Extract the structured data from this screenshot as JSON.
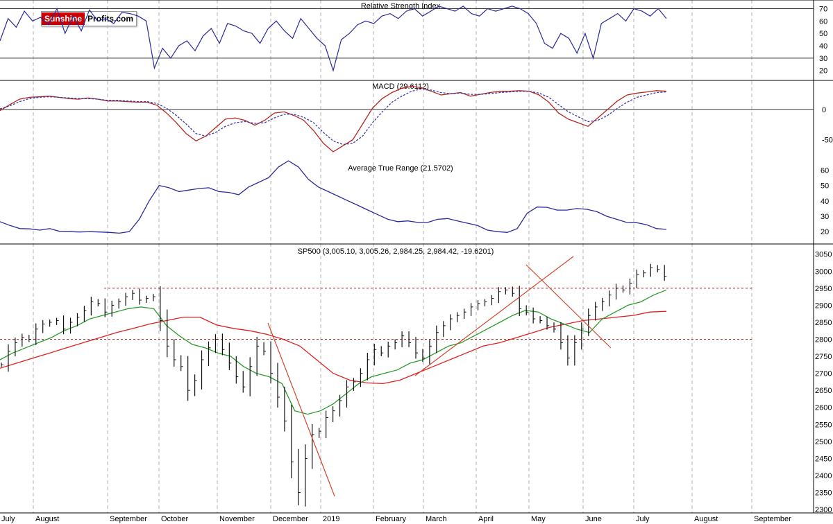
{
  "logo": {
    "part1": "Sunshine",
    "part2": "Profits.com"
  },
  "chart_data": [
    {
      "type": "line",
      "title": "Relative Strength Index",
      "y_ticks": [
        70,
        60,
        50,
        40,
        30,
        20
      ],
      "ylim": [
        12,
        77
      ],
      "reference_lines": [
        70,
        30
      ],
      "series": [
        {
          "values": [
            44,
            62,
            55,
            68,
            60,
            63,
            57,
            70,
            50,
            64,
            52,
            69,
            60,
            62,
            58,
            67,
            66,
            64,
            60,
            22,
            38,
            30,
            40,
            44,
            36,
            48,
            54,
            42,
            58,
            56,
            52,
            50,
            42,
            54,
            60,
            52,
            46,
            62,
            54,
            46,
            40,
            20,
            45,
            50,
            57,
            60,
            58,
            64,
            66,
            62,
            68,
            70,
            64,
            68,
            72,
            70,
            68,
            72,
            66,
            64,
            70,
            68,
            70,
            72,
            70,
            66,
            58,
            42,
            38,
            50,
            46,
            34,
            50,
            30,
            58,
            62,
            66,
            60,
            70,
            68,
            64,
            70,
            62
          ]
        }
      ]
    },
    {
      "type": "line",
      "title": "MACD (29.6112)",
      "y_ticks": [
        0,
        -50
      ],
      "ylim": [
        -78,
        48
      ],
      "series": [
        {
          "color": "#b3261e",
          "values": [
            -2,
            8,
            17,
            20,
            21,
            22,
            20,
            18,
            17,
            19,
            17,
            14,
            14,
            13,
            12,
            12,
            7,
            -6,
            -22,
            -40,
            -52,
            -44,
            -30,
            -16,
            -14,
            -18,
            -26,
            -18,
            -6,
            -4,
            -10,
            -18,
            -35,
            -56,
            -70,
            -60,
            -50,
            -24,
            2,
            18,
            28,
            35,
            38,
            36,
            30,
            24,
            26,
            28,
            22,
            25,
            28,
            30,
            30,
            31,
            30,
            24,
            12,
            -6,
            -16,
            -22,
            -28,
            -14,
            0,
            14,
            24,
            27,
            29,
            31,
            30
          ]
        },
        {
          "color": "#3a3aa8",
          "values": [
            1,
            6,
            13,
            18,
            20,
            21,
            20,
            19,
            18,
            18,
            17,
            15,
            15,
            14,
            13,
            13,
            10,
            2,
            -10,
            -24,
            -40,
            -44,
            -38,
            -28,
            -22,
            -20,
            -23,
            -22,
            -14,
            -8,
            -8,
            -13,
            -22,
            -38,
            -52,
            -58,
            -56,
            -44,
            -22,
            -4,
            12,
            22,
            30,
            34,
            32,
            28,
            26,
            27,
            25,
            25,
            26,
            28,
            29,
            30,
            30,
            27,
            20,
            8,
            -4,
            -12,
            -20,
            -18,
            -10,
            2,
            12,
            20,
            24,
            28,
            29
          ]
        }
      ]
    },
    {
      "type": "line",
      "title": "Average True Range (21.5702)",
      "y_ticks": [
        60,
        50,
        40,
        30,
        20
      ],
      "ylim": [
        12,
        66
      ],
      "series": [
        {
          "values": [
            26.5,
            24,
            22,
            21.8,
            21,
            22,
            20.2,
            20,
            19.8,
            20,
            19.8,
            19.5,
            19,
            20,
            28,
            40,
            50,
            48.5,
            46,
            47,
            48,
            48.5,
            46,
            45.5,
            44,
            49,
            52,
            55,
            62,
            66,
            62,
            54,
            49,
            46,
            43,
            40,
            37,
            34,
            31,
            28,
            26.5,
            27,
            26,
            26,
            28,
            28.5,
            27,
            25.5,
            24,
            21,
            20,
            19.5,
            22,
            32,
            36,
            35.8,
            34,
            34,
            35,
            34.5,
            33,
            30,
            28,
            26,
            25.8,
            24.5,
            22,
            21.5
          ]
        }
      ]
    },
    {
      "type": "bar",
      "title": "SP500 (3,005.10, 3,005.26, 2,984.25, 2,984.42, -19.6201)",
      "y_ticks": [
        3050,
        3000,
        2950,
        2900,
        2850,
        2800,
        2750,
        2700,
        2650,
        2600,
        2550,
        2500,
        2450,
        2400,
        2350,
        2300
      ],
      "ylim": [
        2290,
        3080
      ],
      "x_labels": [
        "July",
        "August",
        "September",
        "October",
        "November",
        "December",
        "2019",
        "February",
        "March",
        "April",
        "May",
        "June",
        "July",
        "August",
        "September"
      ],
      "price_closes": [
        2725,
        2765,
        2790,
        2805,
        2800,
        2830,
        2845,
        2850,
        2855,
        2830,
        2850,
        2865,
        2885,
        2910,
        2905,
        2880,
        2900,
        2910,
        2925,
        2935,
        2915,
        2920,
        2925,
        2855,
        2780,
        2740,
        2720,
        2650,
        2680,
        2740,
        2775,
        2800,
        2770,
        2730,
        2690,
        2660,
        2720,
        2780,
        2765,
        2700,
        2630,
        2560,
        2440,
        2350,
        2450,
        2520,
        2530,
        2570,
        2590,
        2620,
        2660,
        2675,
        2700,
        2740,
        2770,
        2760,
        2780,
        2790,
        2810,
        2790,
        2760,
        2745,
        2780,
        2820,
        2840,
        2860,
        2870,
        2880,
        2895,
        2905,
        2910,
        2920,
        2940,
        2945,
        2935,
        2890,
        2880,
        2860,
        2855,
        2840,
        2830,
        2790,
        2745,
        2790,
        2830,
        2870,
        2895,
        2910,
        2930,
        2950,
        2945,
        2965,
        2990,
        2995,
        3010,
        3005,
        2985
      ],
      "ma_green": [
        2740,
        2760,
        2775,
        2790,
        2805,
        2825,
        2840,
        2860,
        2870,
        2880,
        2890,
        2895,
        2890,
        2840,
        2810,
        2785,
        2775,
        2760,
        2750,
        2720,
        2700,
        2690,
        2670,
        2590,
        2580,
        2590,
        2610,
        2640,
        2670,
        2690,
        2700,
        2710,
        2730,
        2740,
        2760,
        2780,
        2790,
        2810,
        2830,
        2850,
        2870,
        2885,
        2880,
        2860,
        2845,
        2830,
        2820,
        2860,
        2880,
        2900,
        2910,
        2930,
        2945
      ],
      "ma_red": [
        2715,
        2730,
        2745,
        2760,
        2775,
        2790,
        2805,
        2820,
        2832,
        2845,
        2855,
        2865,
        2865,
        2842,
        2832,
        2825,
        2815,
        2800,
        2780,
        2740,
        2700,
        2680,
        2672,
        2670,
        2680,
        2700,
        2720,
        2740,
        2760,
        2780,
        2790,
        2805,
        2820,
        2835,
        2845,
        2855,
        2860,
        2865,
        2870,
        2880,
        2882
      ],
      "support_lines": [
        2950,
        2800
      ]
    }
  ]
}
